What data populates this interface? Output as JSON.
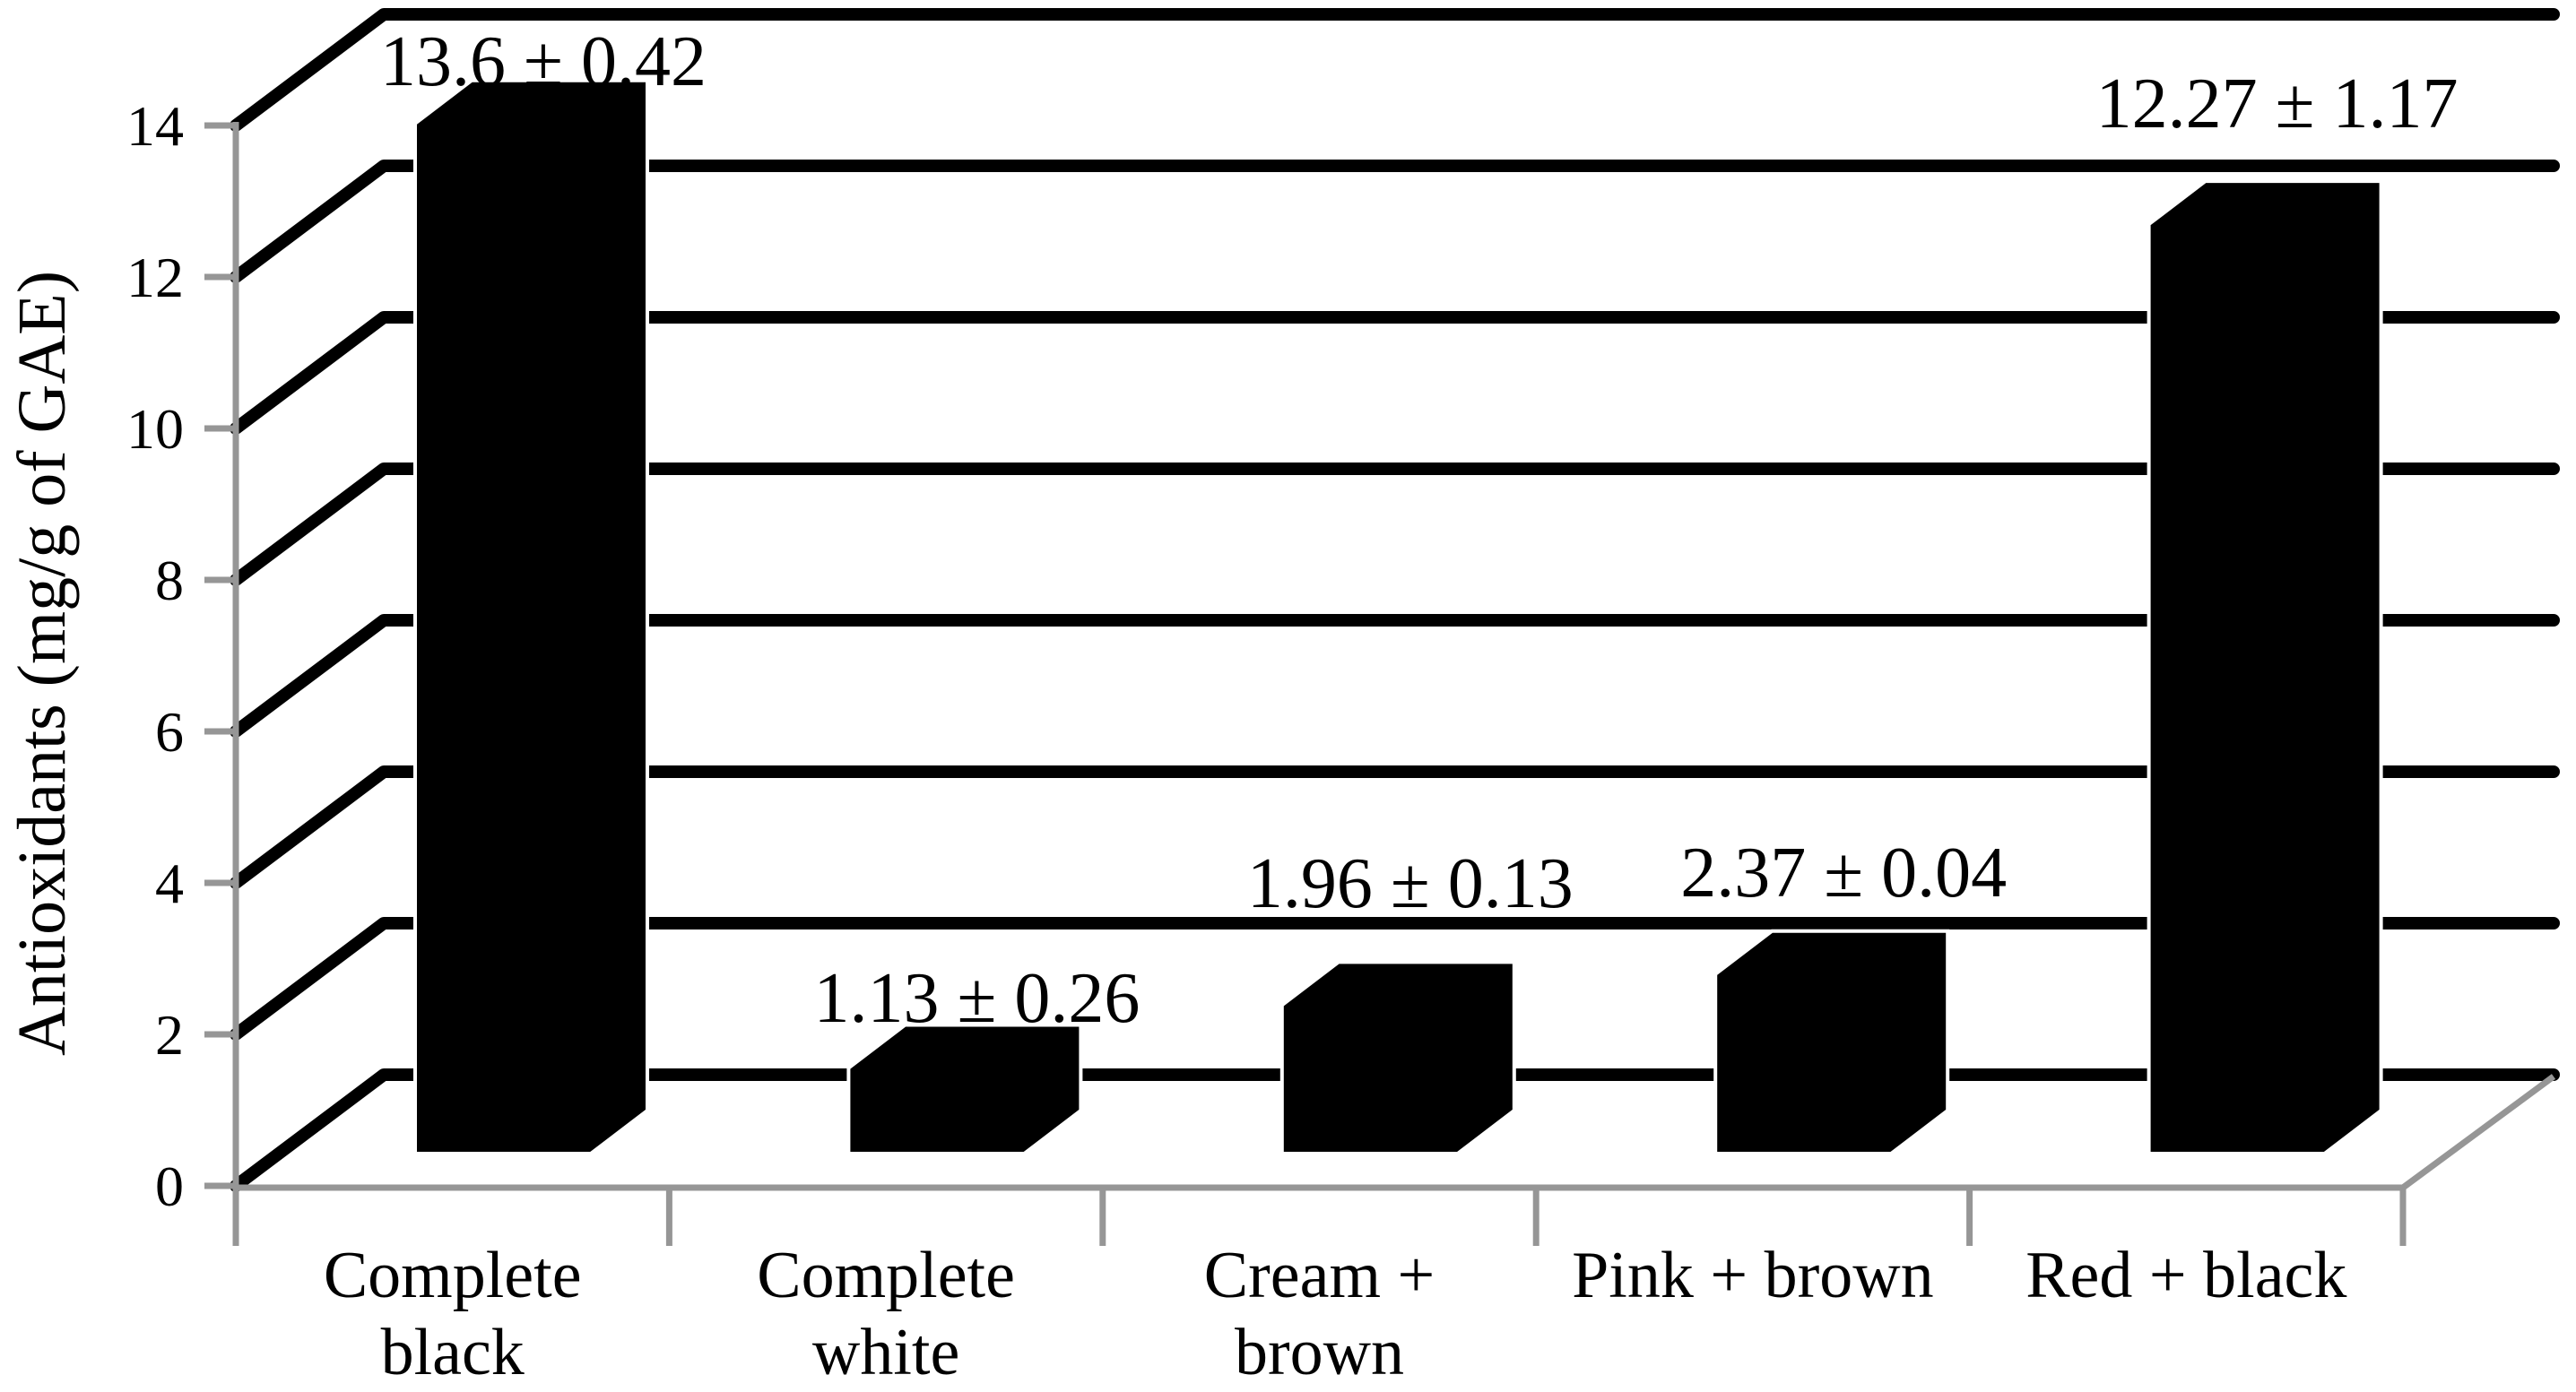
{
  "figure": {
    "background": "#ffffff",
    "text_color": "#000000",
    "axis_color": "#969696",
    "bar_color": "#000000",
    "gridline_color": "#000000"
  },
  "chart_data": {
    "type": "bar",
    "projection": "3d-oblique-column",
    "title": "",
    "xlabel": "",
    "ylabel": "Antioxidants (mg/g of GAE)",
    "ylim": [
      0,
      14
    ],
    "ytick_step": 2,
    "y_ticks": [
      "0",
      "2",
      "4",
      "6",
      "8",
      "10",
      "12",
      "14"
    ],
    "grid": true,
    "legend": "none",
    "categories": [
      "Complete black",
      "Complete white",
      "Cream + brown",
      "Pink + brown",
      "Red + black"
    ],
    "category_label_lines": [
      [
        "Complete",
        "black"
      ],
      [
        "Complete",
        "white"
      ],
      [
        "Cream +",
        "brown"
      ],
      [
        "Pink + brown"
      ],
      [
        "Red + black"
      ]
    ],
    "series": [
      {
        "name": "Antioxidants (mg/g of GAE)",
        "values": [
          13.6,
          1.13,
          1.96,
          2.37,
          12.27
        ],
        "errors": [
          0.42,
          0.26,
          0.13,
          0.04,
          1.17
        ]
      }
    ],
    "data_labels": [
      "13.6 ± 0.42",
      "1.13 ± 0.26",
      "1.96 ± 0.13",
      "2.37 ± 0.04",
      "12.27 ± 1.17"
    ]
  }
}
